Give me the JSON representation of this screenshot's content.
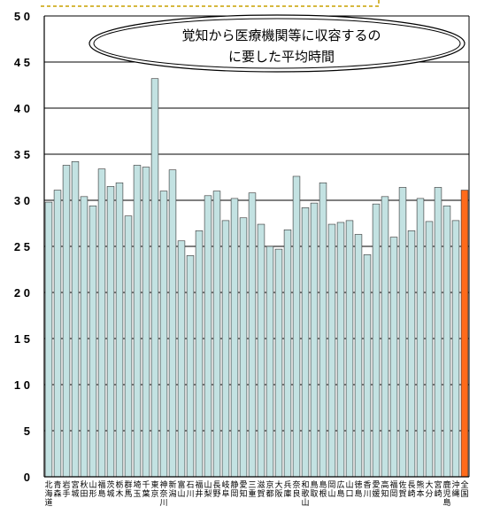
{
  "chart_data": {
    "type": "bar",
    "title_lines": [
      "覚知から医療機関等に収容するの",
      "に要した平均時間"
    ],
    "xlabel": "",
    "ylabel": "",
    "ylim": [
      0,
      50
    ],
    "ytick_labels": [
      "0",
      "5",
      "1 0",
      "1 5",
      "2 0",
      "2 5",
      "3 0",
      "3 5",
      "4 0",
      "4 5",
      "5 0"
    ],
    "grid": true,
    "colors": {
      "bar": "#c3e2e2",
      "highlight": "#ff6a1a",
      "bar_edge": "#333333",
      "title_border": "#c8a000"
    },
    "highlight_index": 47,
    "categories": [
      "北海道",
      "青森",
      "岩手",
      "宮城",
      "秋田",
      "山形",
      "福島",
      "茨城",
      "栃木",
      "群馬",
      "埼玉",
      "千葉",
      "東京",
      "神奈川",
      "新潟",
      "富山",
      "石川",
      "福井",
      "山梨",
      "長野",
      "岐阜",
      "静岡",
      "愛知",
      "三重",
      "滋賀",
      "京都",
      "大阪",
      "兵庫",
      "奈良",
      "和歌山",
      "鳥取",
      "島根",
      "岡山",
      "広島",
      "山口",
      "徳島",
      "香川",
      "愛媛",
      "高知",
      "福岡",
      "佐賀",
      "長崎",
      "熊本",
      "大分",
      "宮崎",
      "鹿児島",
      "沖縄",
      "全国"
    ],
    "values": [
      29.8,
      31.1,
      33.8,
      34.2,
      30.4,
      29.4,
      33.4,
      31.5,
      31.9,
      28.3,
      33.8,
      33.6,
      43.2,
      31.0,
      33.3,
      25.6,
      24.0,
      26.7,
      30.5,
      31.0,
      27.8,
      30.2,
      28.1,
      30.8,
      27.4,
      25.0,
      24.7,
      26.8,
      32.6,
      29.2,
      29.7,
      31.9,
      27.4,
      27.6,
      27.8,
      26.3,
      24.1,
      29.6,
      30.4,
      26.0,
      31.4,
      26.7,
      30.2,
      27.7,
      31.4,
      29.4,
      27.8,
      31.1
    ]
  }
}
